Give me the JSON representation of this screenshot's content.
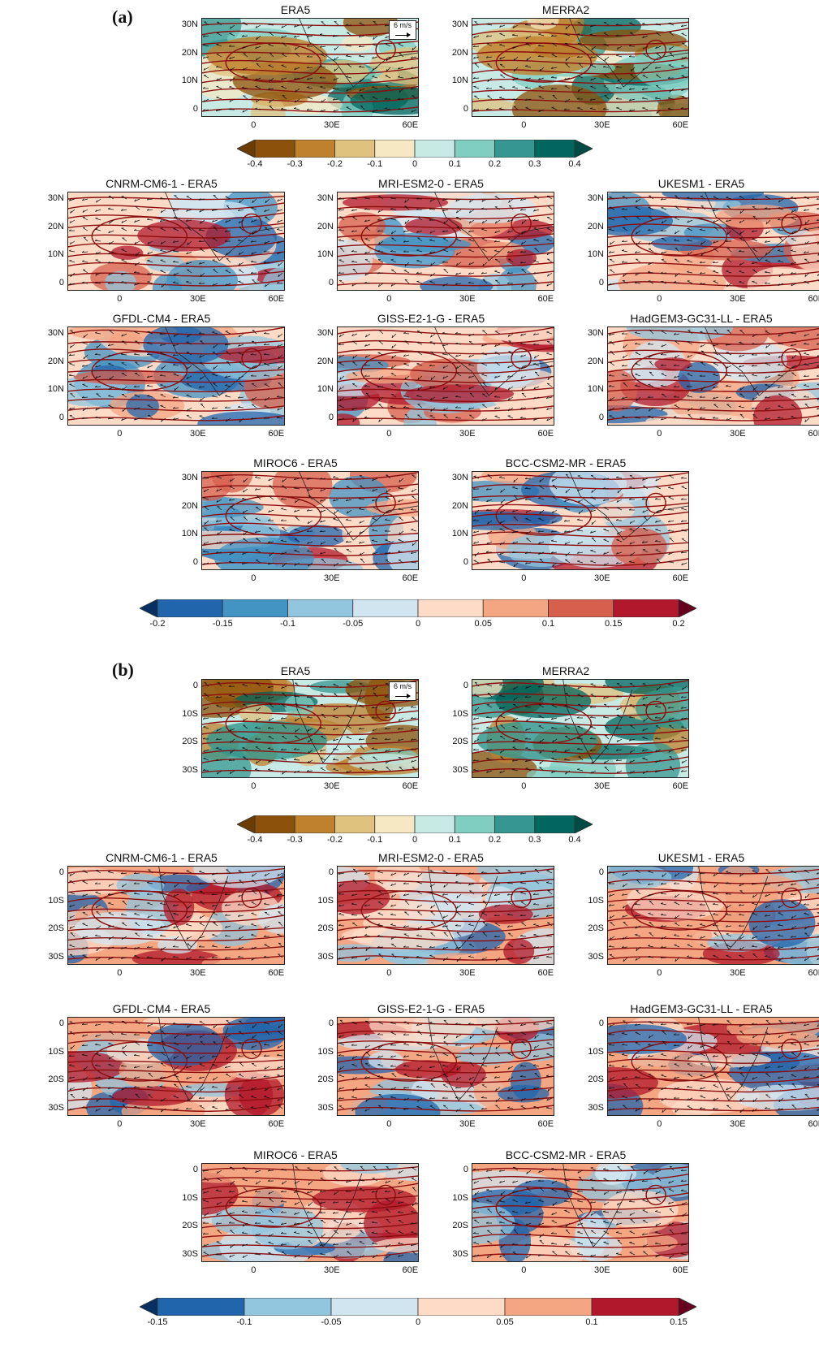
{
  "panel_a": {
    "letter": "(a)",
    "lat_labels": [
      "30N",
      "20N",
      "10N",
      "0"
    ],
    "lon_labels": [
      "0",
      "30E",
      "60E"
    ],
    "reference_vector": "6 m/s",
    "reanalysis_maps": [
      {
        "title": "ERA5"
      },
      {
        "title": "MERRA2"
      }
    ],
    "model_maps": [
      {
        "title": "CNRM-CM6-1 - ERA5"
      },
      {
        "title": "MRI-ESM2-0 - ERA5"
      },
      {
        "title": "UKESM1 - ERA5"
      },
      {
        "title": "GFDL-CM4 - ERA5"
      },
      {
        "title": "GISS-E2-1-G - ERA5"
      },
      {
        "title": "HadGEM3-GC31-LL - ERA5"
      },
      {
        "title": "MIROC6 - ERA5"
      },
      {
        "title": "BCC-CSM2-MR - ERA5"
      }
    ],
    "colorbar_top": {
      "labels": [
        "-0.4",
        "-0.3",
        "-0.2",
        "-0.1",
        "0",
        "0.1",
        "0.2",
        "0.3",
        "0.4"
      ],
      "colors": [
        "#8c510a",
        "#bf812d",
        "#dfc27d",
        "#f6e8c3",
        "#c7eae5",
        "#80cdc1",
        "#35978f",
        "#01665e"
      ],
      "end_low": "#6b3d05",
      "end_high": "#014b45"
    },
    "colorbar_bottom": {
      "labels": [
        "-0.2",
        "-0.15",
        "-0.1",
        "-0.05",
        "0",
        "0.05",
        "0.1",
        "0.15",
        "0.2"
      ],
      "colors": [
        "#2166ac",
        "#4393c3",
        "#92c5de",
        "#d1e5f0",
        "#fddbc7",
        "#f4a582",
        "#d6604d",
        "#b2182b"
      ],
      "end_low": "#053061",
      "end_high": "#67001f"
    }
  },
  "panel_b": {
    "letter": "(b)",
    "lat_labels": [
      "0",
      "10S",
      "20S",
      "30S"
    ],
    "lon_labels": [
      "0",
      "30E",
      "60E"
    ],
    "reference_vector": "6 m/s",
    "reanalysis_maps": [
      {
        "title": "ERA5"
      },
      {
        "title": "MERRA2"
      }
    ],
    "model_maps": [
      {
        "title": "CNRM-CM6-1 - ERA5"
      },
      {
        "title": "MRI-ESM2-0 - ERA5"
      },
      {
        "title": "UKESM1 - ERA5"
      },
      {
        "title": "GFDL-CM4 - ERA5"
      },
      {
        "title": "GISS-E2-1-G - ERA5"
      },
      {
        "title": "HadGEM3-GC31-LL - ERA5"
      },
      {
        "title": "MIROC6 - ERA5"
      },
      {
        "title": "BCC-CSM2-MR - ERA5"
      }
    ],
    "colorbar_top": {
      "labels": [
        "-0.4",
        "-0.3",
        "-0.2",
        "-0.1",
        "0",
        "0.1",
        "0.2",
        "0.3",
        "0.4"
      ],
      "colors": [
        "#8c510a",
        "#bf812d",
        "#dfc27d",
        "#f6e8c3",
        "#c7eae5",
        "#80cdc1",
        "#35978f",
        "#01665e"
      ],
      "end_low": "#6b3d05",
      "end_high": "#014b45"
    },
    "colorbar_bottom": {
      "labels": [
        "-0.15",
        "-0.1",
        "-0.05",
        "0",
        "0.05",
        "0.1",
        "0.15"
      ],
      "colors": [
        "#2166ac",
        "#92c5de",
        "#d1e5f0",
        "#fddbc7",
        "#f4a582",
        "#b2182b"
      ],
      "end_low": "#053061",
      "end_high": "#67001f"
    }
  }
}
